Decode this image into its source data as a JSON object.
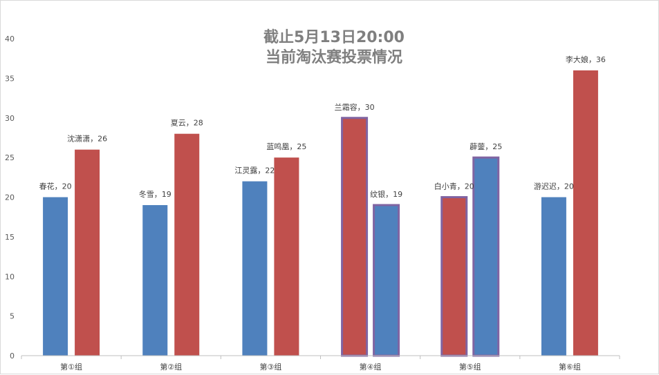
{
  "chart_data": {
    "type": "bar",
    "title_line1": "截止5月13日20:00",
    "title_line2": "当前淘汰赛投票情况",
    "categories": [
      "第①组",
      "第②组",
      "第③组",
      "第④组",
      "第⑤组",
      "第⑥组"
    ],
    "ylim": [
      0,
      40
    ],
    "yticks": [
      0,
      5,
      10,
      15,
      20,
      25,
      30,
      35,
      40
    ],
    "grid": false,
    "colors": {
      "blue": "#4f81bd",
      "red": "#c0504d",
      "outline": "#8064a2"
    },
    "groups": [
      {
        "bars": [
          {
            "name": "春花",
            "value": 20,
            "color": "blue",
            "outlined": false
          },
          {
            "name": "沈潇潇",
            "value": 26,
            "color": "red",
            "outlined": false
          }
        ]
      },
      {
        "bars": [
          {
            "name": "冬雪",
            "value": 19,
            "color": "blue",
            "outlined": false
          },
          {
            "name": "夏云",
            "value": 28,
            "color": "red",
            "outlined": false
          }
        ]
      },
      {
        "bars": [
          {
            "name": "江灵露",
            "value": 22,
            "color": "blue",
            "outlined": false
          },
          {
            "name": "蓝鸣凰",
            "value": 25,
            "color": "red",
            "outlined": false
          }
        ]
      },
      {
        "bars": [
          {
            "name": "兰霜容",
            "value": 30,
            "color": "red",
            "outlined": true
          },
          {
            "name": "纹银",
            "value": 19,
            "color": "blue",
            "outlined": true
          }
        ]
      },
      {
        "bars": [
          {
            "name": "白小青",
            "value": 20,
            "color": "red",
            "outlined": true
          },
          {
            "name": "薜蓥",
            "value": 25,
            "color": "blue",
            "outlined": true
          }
        ]
      },
      {
        "bars": [
          {
            "name": "游迟迟",
            "value": 20,
            "color": "blue",
            "outlined": false
          },
          {
            "name": "李大娘",
            "value": 36,
            "color": "red",
            "outlined": false
          }
        ]
      }
    ],
    "label_separator": "，"
  }
}
